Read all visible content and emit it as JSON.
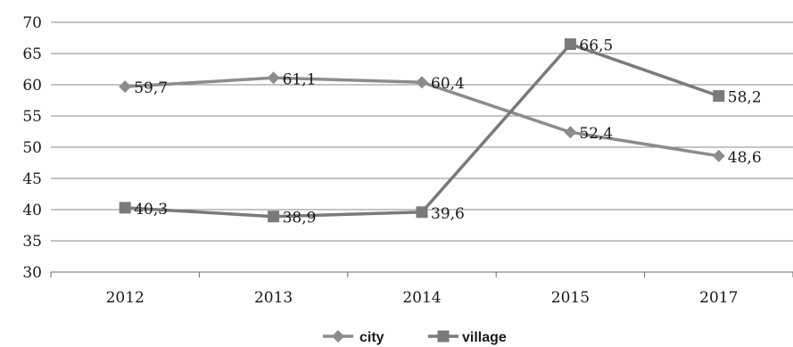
{
  "chart_data": {
    "type": "line",
    "title": "",
    "xlabel": "",
    "ylabel": "",
    "categories": [
      "2012",
      "2013",
      "2014",
      "2015",
      "2017"
    ],
    "ylim": [
      30,
      70
    ],
    "yticks": [
      "30",
      "35",
      "40",
      "45",
      "50",
      "55",
      "60",
      "65",
      "70"
    ],
    "grid": "horizontal",
    "legend_position": "bottom",
    "series": [
      {
        "name": "city",
        "marker": "diamond",
        "color": "#8c8c8c",
        "values": [
          59.7,
          61.1,
          60.4,
          52.4,
          48.6
        ],
        "labels": [
          "59,7",
          "61,1",
          "60,4",
          "52,4",
          "48,6"
        ]
      },
      {
        "name": "village",
        "marker": "square",
        "color": "#7a7a7a",
        "values": [
          40.3,
          38.9,
          39.6,
          66.5,
          58.2
        ],
        "labels": [
          "40,3",
          "38,9",
          "39,6",
          "66,5",
          "58,2"
        ]
      }
    ]
  }
}
